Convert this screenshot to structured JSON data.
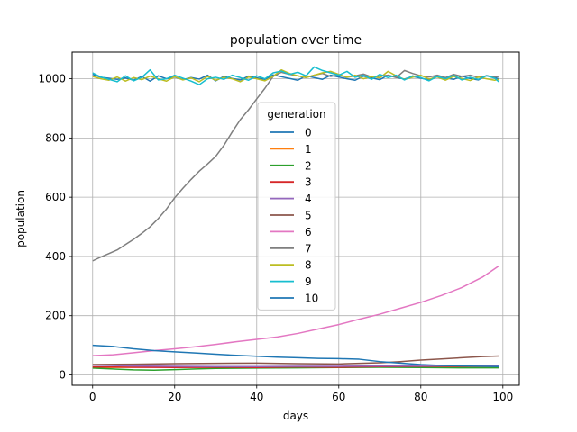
{
  "chart_data": {
    "type": "line",
    "title": "population over time",
    "xlabel": "days",
    "ylabel": "population",
    "xlim": [
      -5,
      104
    ],
    "ylim": [
      -35,
      1090
    ],
    "xticks": [
      0,
      20,
      40,
      60,
      80,
      100
    ],
    "yticks": [
      0,
      200,
      400,
      600,
      800,
      1000
    ],
    "grid": true,
    "legend": {
      "title": "generation",
      "placement": "center"
    },
    "series": [
      {
        "name": "0",
        "color": "#1f77b4",
        "points": [
          [
            0,
            1015
          ],
          [
            2,
            1005
          ],
          [
            4,
            1002
          ],
          [
            6,
            998
          ],
          [
            8,
            1003
          ],
          [
            10,
            995
          ],
          [
            12,
            1008
          ],
          [
            14,
            992
          ],
          [
            16,
            1010
          ],
          [
            18,
            1000
          ],
          [
            20,
            1006
          ],
          [
            22,
            997
          ],
          [
            24,
            1004
          ],
          [
            26,
            999
          ],
          [
            28,
            1012
          ],
          [
            30,
            993
          ],
          [
            32,
            1008
          ],
          [
            34,
            1001
          ],
          [
            36,
            996
          ],
          [
            38,
            1009
          ],
          [
            40,
            1003
          ],
          [
            42,
            998
          ],
          [
            44,
            1013
          ],
          [
            46,
            1007
          ],
          [
            48,
            1001
          ],
          [
            50,
            995
          ],
          [
            52,
            1010
          ],
          [
            54,
            1004
          ],
          [
            56,
            998
          ],
          [
            58,
            1012
          ],
          [
            60,
            1006
          ],
          [
            62,
            1000
          ],
          [
            64,
            995
          ],
          [
            66,
            1009
          ],
          [
            68,
            1003
          ],
          [
            70,
            997
          ],
          [
            72,
            1012
          ],
          [
            74,
            1005
          ],
          [
            76,
            999
          ],
          [
            78,
            1008
          ],
          [
            80,
            1002
          ],
          [
            82,
            996
          ],
          [
            84,
            1010
          ],
          [
            86,
            1003
          ],
          [
            88,
            998
          ],
          [
            90,
            1009
          ],
          [
            92,
            1001
          ],
          [
            94,
            996
          ],
          [
            96,
            1011
          ],
          [
            98,
            1004
          ],
          [
            99,
            1000
          ]
        ]
      },
      {
        "name": "1",
        "color": "#ff7f0e",
        "points": [
          [
            0,
            25
          ],
          [
            10,
            26
          ],
          [
            20,
            27
          ],
          [
            30,
            26
          ],
          [
            40,
            27
          ],
          [
            50,
            28
          ],
          [
            60,
            27
          ],
          [
            70,
            28
          ],
          [
            80,
            27
          ],
          [
            90,
            26
          ],
          [
            99,
            25
          ]
        ]
      },
      {
        "name": "2",
        "color": "#2ca02c",
        "points": [
          [
            0,
            23
          ],
          [
            5,
            20
          ],
          [
            10,
            17
          ],
          [
            15,
            16
          ],
          [
            20,
            18
          ],
          [
            25,
            20
          ],
          [
            30,
            22
          ],
          [
            40,
            23
          ],
          [
            50,
            24
          ],
          [
            60,
            25
          ],
          [
            70,
            26
          ],
          [
            80,
            25
          ],
          [
            90,
            24
          ],
          [
            99,
            24
          ]
        ]
      },
      {
        "name": "3",
        "color": "#d62728",
        "points": [
          [
            0,
            27
          ],
          [
            10,
            26
          ],
          [
            20,
            25
          ],
          [
            30,
            26
          ],
          [
            40,
            25
          ],
          [
            50,
            27
          ],
          [
            60,
            26
          ],
          [
            70,
            28
          ],
          [
            80,
            29
          ],
          [
            90,
            29
          ],
          [
            99,
            30
          ]
        ]
      },
      {
        "name": "4",
        "color": "#9467bd",
        "points": [
          [
            0,
            33
          ],
          [
            10,
            30
          ],
          [
            20,
            29
          ],
          [
            30,
            28
          ],
          [
            40,
            28
          ],
          [
            50,
            29
          ],
          [
            60,
            29
          ],
          [
            70,
            30
          ],
          [
            80,
            30
          ],
          [
            90,
            31
          ],
          [
            99,
            31
          ]
        ]
      },
      {
        "name": "5",
        "color": "#8c564b",
        "points": [
          [
            0,
            35
          ],
          [
            10,
            36
          ],
          [
            20,
            38
          ],
          [
            30,
            39
          ],
          [
            40,
            40
          ],
          [
            50,
            38
          ],
          [
            60,
            37
          ],
          [
            70,
            41
          ],
          [
            75,
            45
          ],
          [
            80,
            50
          ],
          [
            85,
            54
          ],
          [
            90,
            58
          ],
          [
            95,
            62
          ],
          [
            99,
            64
          ]
        ]
      },
      {
        "name": "6",
        "color": "#e377c2",
        "points": [
          [
            0,
            65
          ],
          [
            5,
            68
          ],
          [
            10,
            75
          ],
          [
            15,
            82
          ],
          [
            20,
            88
          ],
          [
            25,
            95
          ],
          [
            30,
            103
          ],
          [
            35,
            112
          ],
          [
            40,
            120
          ],
          [
            45,
            128
          ],
          [
            50,
            140
          ],
          [
            55,
            155
          ],
          [
            60,
            170
          ],
          [
            65,
            188
          ],
          [
            70,
            205
          ],
          [
            75,
            225
          ],
          [
            80,
            245
          ],
          [
            85,
            268
          ],
          [
            90,
            295
          ],
          [
            95,
            330
          ],
          [
            99,
            368
          ]
        ]
      },
      {
        "name": "7",
        "color": "#7f7f7f",
        "points": [
          [
            0,
            385
          ],
          [
            2,
            398
          ],
          [
            4,
            410
          ],
          [
            6,
            422
          ],
          [
            8,
            440
          ],
          [
            10,
            458
          ],
          [
            12,
            478
          ],
          [
            14,
            500
          ],
          [
            16,
            528
          ],
          [
            18,
            560
          ],
          [
            20,
            598
          ],
          [
            22,
            630
          ],
          [
            24,
            660
          ],
          [
            26,
            688
          ],
          [
            28,
            712
          ],
          [
            30,
            738
          ],
          [
            32,
            775
          ],
          [
            34,
            820
          ],
          [
            36,
            862
          ],
          [
            38,
            895
          ],
          [
            40,
            932
          ],
          [
            42,
            968
          ],
          [
            44,
            1008
          ],
          [
            46,
            1022
          ],
          [
            48,
            1015
          ],
          [
            50,
            1010
          ],
          [
            52,
            1004
          ],
          [
            54,
            1012
          ],
          [
            56,
            1018
          ],
          [
            58,
            1008
          ],
          [
            60,
            1013
          ],
          [
            62,
            1005
          ],
          [
            64,
            1010
          ],
          [
            66,
            1016
          ],
          [
            68,
            1006
          ],
          [
            70,
            1009
          ],
          [
            72,
            1012
          ],
          [
            74,
            1004
          ],
          [
            76,
            1028
          ],
          [
            78,
            1018
          ],
          [
            80,
            1010
          ],
          [
            82,
            1006
          ],
          [
            84,
            1012
          ],
          [
            86,
            1004
          ],
          [
            88,
            1015
          ],
          [
            90,
            1008
          ],
          [
            92,
            1012
          ],
          [
            94,
            1005
          ],
          [
            96,
            1010
          ],
          [
            98,
            1006
          ],
          [
            99,
            1008
          ]
        ]
      },
      {
        "name": "8",
        "color": "#bcbd22",
        "points": [
          [
            0,
            1008
          ],
          [
            2,
            1000
          ],
          [
            4,
            995
          ],
          [
            6,
            1006
          ],
          [
            8,
            992
          ],
          [
            10,
            1004
          ],
          [
            12,
            997
          ],
          [
            14,
            1009
          ],
          [
            16,
            1000
          ],
          [
            18,
            992
          ],
          [
            20,
            1007
          ],
          [
            22,
            996
          ],
          [
            24,
            1003
          ],
          [
            26,
            990
          ],
          [
            28,
            1008
          ],
          [
            30,
            995
          ],
          [
            32,
            1005
          ],
          [
            34,
            1000
          ],
          [
            36,
            990
          ],
          [
            38,
            1006
          ],
          [
            40,
            1000
          ],
          [
            42,
            993
          ],
          [
            44,
            1008
          ],
          [
            46,
            1030
          ],
          [
            48,
            1018
          ],
          [
            50,
            1010
          ],
          [
            52,
            1004
          ],
          [
            54,
            1012
          ],
          [
            56,
            1020
          ],
          [
            58,
            1025
          ],
          [
            60,
            1015
          ],
          [
            62,
            1005
          ],
          [
            64,
            1012
          ],
          [
            66,
            1000
          ],
          [
            68,
            1008
          ],
          [
            70,
            1003
          ],
          [
            72,
            1025
          ],
          [
            74,
            1010
          ],
          [
            76,
            998
          ],
          [
            78,
            1005
          ],
          [
            80,
            1012
          ],
          [
            82,
            999
          ],
          [
            84,
            1006
          ],
          [
            86,
            995
          ],
          [
            88,
            1008
          ],
          [
            90,
            1001
          ],
          [
            92,
            994
          ],
          [
            94,
            1006
          ],
          [
            96,
            1000
          ],
          [
            98,
            995
          ],
          [
            99,
            998
          ]
        ]
      },
      {
        "name": "9",
        "color": "#17becf",
        "points": [
          [
            0,
            1020
          ],
          [
            2,
            1006
          ],
          [
            4,
            998
          ],
          [
            6,
            990
          ],
          [
            8,
            1010
          ],
          [
            10,
            993
          ],
          [
            12,
            1005
          ],
          [
            14,
            1030
          ],
          [
            16,
            996
          ],
          [
            18,
            1000
          ],
          [
            20,
            1012
          ],
          [
            22,
            1002
          ],
          [
            24,
            992
          ],
          [
            26,
            980
          ],
          [
            28,
            1000
          ],
          [
            30,
            1005
          ],
          [
            32,
            998
          ],
          [
            34,
            1012
          ],
          [
            36,
            1004
          ],
          [
            38,
            995
          ],
          [
            40,
            1010
          ],
          [
            42,
            1000
          ],
          [
            44,
            1020
          ],
          [
            46,
            1026
          ],
          [
            48,
            1015
          ],
          [
            50,
            1022
          ],
          [
            52,
            1010
          ],
          [
            54,
            1040
          ],
          [
            56,
            1028
          ],
          [
            58,
            1020
          ],
          [
            60,
            1012
          ],
          [
            62,
            1025
          ],
          [
            64,
            1005
          ],
          [
            66,
            1012
          ],
          [
            68,
            998
          ],
          [
            70,
            1015
          ],
          [
            72,
            1004
          ],
          [
            74,
            1012
          ],
          [
            76,
            996
          ],
          [
            78,
            1010
          ],
          [
            80,
            1004
          ],
          [
            82,
            993
          ],
          [
            84,
            1008
          ],
          [
            86,
            1000
          ],
          [
            88,
            1012
          ],
          [
            90,
            996
          ],
          [
            92,
            1005
          ],
          [
            94,
            998
          ],
          [
            96,
            1010
          ],
          [
            98,
            1002
          ],
          [
            99,
            990
          ]
        ]
      },
      {
        "name": "10",
        "color": "#1f77b4",
        "points": [
          [
            0,
            100
          ],
          [
            5,
            96
          ],
          [
            10,
            88
          ],
          [
            15,
            82
          ],
          [
            20,
            78
          ],
          [
            25,
            74
          ],
          [
            30,
            70
          ],
          [
            35,
            66
          ],
          [
            40,
            63
          ],
          [
            45,
            60
          ],
          [
            50,
            58
          ],
          [
            55,
            56
          ],
          [
            60,
            55
          ],
          [
            65,
            53
          ],
          [
            70,
            45
          ],
          [
            75,
            40
          ],
          [
            80,
            35
          ],
          [
            85,
            32
          ],
          [
            90,
            30
          ],
          [
            95,
            29
          ],
          [
            99,
            28
          ]
        ]
      }
    ]
  }
}
